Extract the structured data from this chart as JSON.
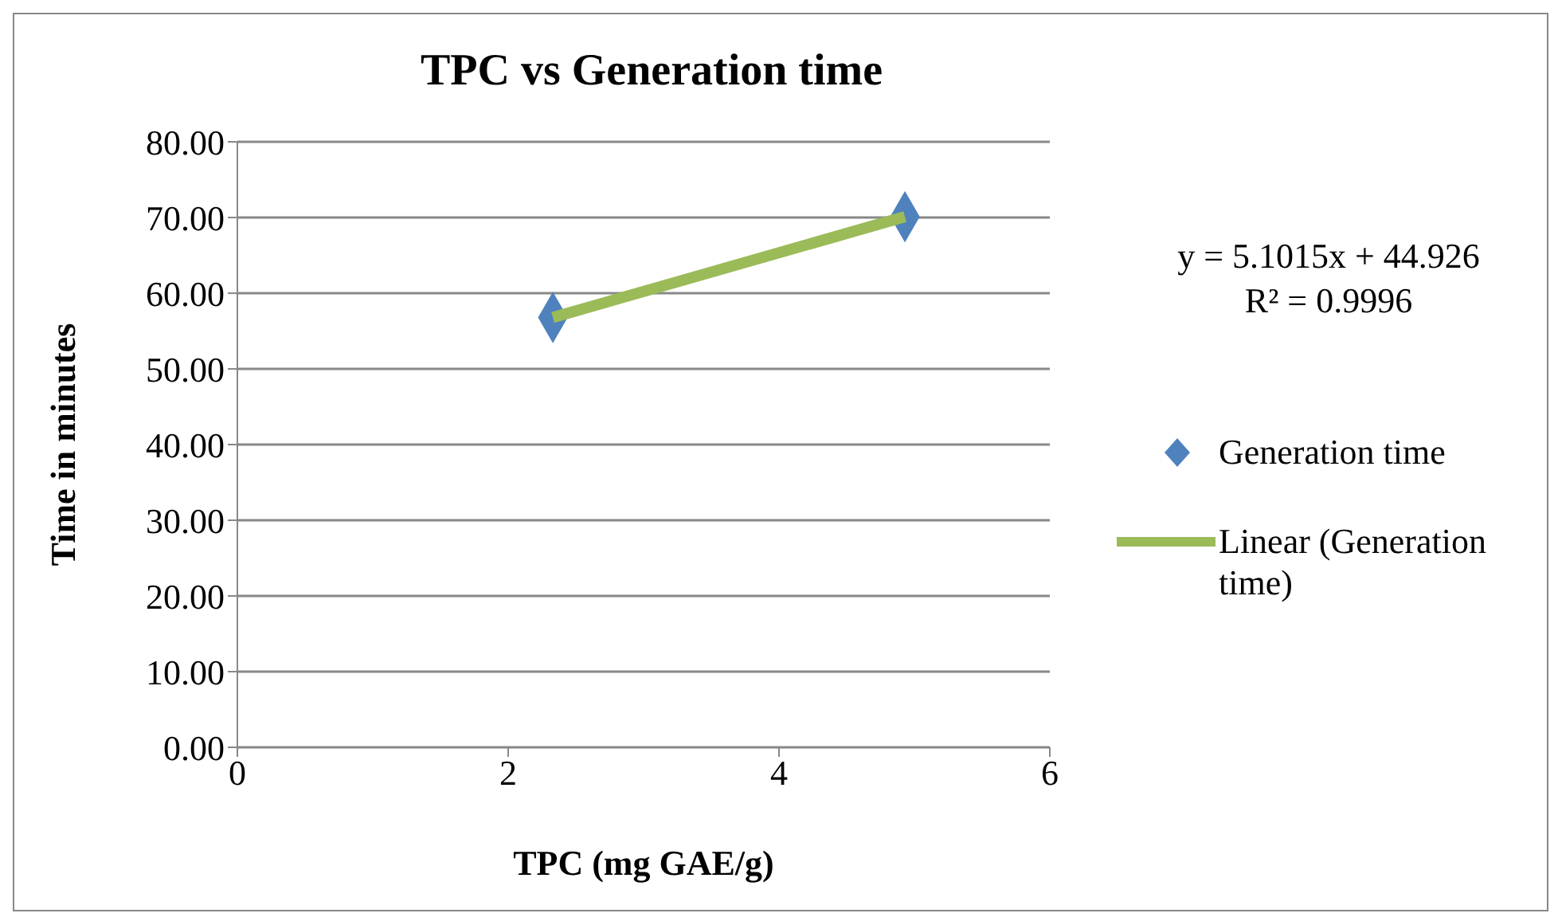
{
  "chart_data": {
    "type": "scatter",
    "title": "TPC vs Generation time",
    "xlabel": "TPC (mg GAE/g)",
    "ylabel": "Time in minutes",
    "x": [
      2.33,
      4.93
    ],
    "series": [
      {
        "name": "Generation time",
        "color": "#4f81bd",
        "values": [
          56.8,
          70.1
        ]
      },
      {
        "name": "Linear (Generation time)",
        "type": "line",
        "marker": "none",
        "color": "#9bbb59",
        "x": [
          2.33,
          4.93
        ],
        "values": [
          56.8,
          70.1
        ]
      }
    ],
    "xlim": [
      0,
      6
    ],
    "xticks": [
      0,
      2,
      4,
      6
    ],
    "ylim": [
      0,
      80
    ],
    "yticks": [
      {
        "value": 0,
        "label": "0.00"
      },
      {
        "value": 10,
        "label": "10.00"
      },
      {
        "value": 20,
        "label": "20.00"
      },
      {
        "value": 30,
        "label": "30.00"
      },
      {
        "value": 40,
        "label": "40.00"
      },
      {
        "value": 50,
        "label": "50.00"
      },
      {
        "value": 60,
        "label": "60.00"
      },
      {
        "value": 70,
        "label": "70.00"
      },
      {
        "value": 80,
        "label": "80.00"
      }
    ],
    "grid": "y",
    "legend": "right",
    "marker": "diamond",
    "line_style": "solid",
    "annotations": [
      "y = 5.1015x + 44.926",
      "R² = 0.9996"
    ]
  }
}
